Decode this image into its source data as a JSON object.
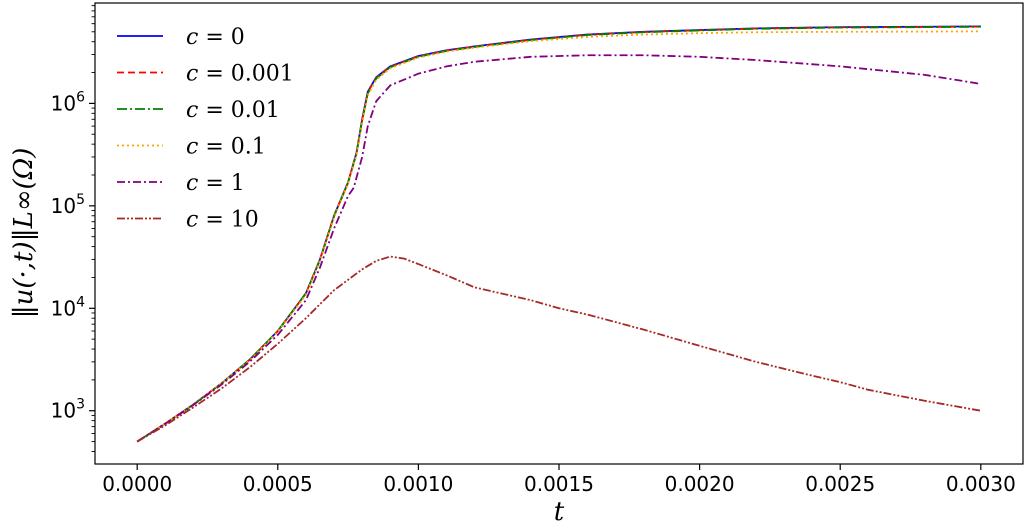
{
  "chart_data": {
    "type": "line",
    "title": "",
    "xlabel": "t",
    "ylabel": "‖u(·,t)‖L∞(Ω)",
    "xlim": [
      -0.00015,
      0.00315
    ],
    "ylim_log10": [
      2.48,
      6.98
    ],
    "y_scale": "log",
    "grid": false,
    "legend_position": "top-left",
    "x_ticks": [
      0.0,
      0.0005,
      0.001,
      0.0015,
      0.002,
      0.0025,
      0.003
    ],
    "x_tick_labels": [
      "0.0000",
      "0.0005",
      "0.0010",
      "0.0015",
      "0.0020",
      "0.0025",
      "0.0030"
    ],
    "y_ticks": [
      1000,
      10000,
      100000,
      1000000
    ],
    "y_tick_labels": [
      {
        "base": "10",
        "exp": "3"
      },
      {
        "base": "10",
        "exp": "4"
      },
      {
        "base": "10",
        "exp": "5"
      },
      {
        "base": "10",
        "exp": "6"
      }
    ],
    "series": [
      {
        "name": "c = 0",
        "legend_var": "c",
        "legend_value": "0",
        "color": "#0000ff",
        "dash": "",
        "x": [
          0,
          0.0001,
          0.0002,
          0.0003,
          0.0004,
          0.0005,
          0.0006,
          0.00065,
          0.0007,
          0.00075,
          0.00078,
          0.0008,
          0.00082,
          0.00085,
          0.0009,
          0.001,
          0.0011,
          0.0012,
          0.0014,
          0.0016,
          0.0018,
          0.002,
          0.0022,
          0.0025,
          0.0028,
          0.003
        ],
        "y": [
          500,
          750,
          1150,
          1850,
          3150,
          6000,
          14000,
          30000,
          80000,
          170000,
          330000,
          700000,
          1300000,
          1800000,
          2300000,
          2900000,
          3300000,
          3600000,
          4200000,
          4700000,
          5000000,
          5200000,
          5400000,
          5550000,
          5600000,
          5650000
        ]
      },
      {
        "name": "c = 0.001",
        "legend_var": "c",
        "legend_value": "0.001",
        "color": "#ff0000",
        "dash": "7,4",
        "x": [
          0,
          0.0001,
          0.0002,
          0.0003,
          0.0004,
          0.0005,
          0.0006,
          0.00065,
          0.0007,
          0.00075,
          0.00078,
          0.0008,
          0.00082,
          0.00085,
          0.0009,
          0.001,
          0.0011,
          0.0012,
          0.0014,
          0.0016,
          0.0018,
          0.002,
          0.0022,
          0.0025,
          0.0028,
          0.003
        ],
        "y": [
          500,
          750,
          1150,
          1850,
          3150,
          6000,
          14000,
          30000,
          80000,
          170000,
          330000,
          690000,
          1280000,
          1780000,
          2280000,
          2880000,
          3280000,
          3580000,
          4180000,
          4680000,
          4980000,
          5180000,
          5380000,
          5530000,
          5580000,
          5620000
        ]
      },
      {
        "name": "c = 0.01",
        "legend_var": "c",
        "legend_value": "0.01",
        "color": "#008000",
        "dash": "10,3,2,3",
        "x": [
          0,
          0.0001,
          0.0002,
          0.0003,
          0.0004,
          0.0005,
          0.0006,
          0.00065,
          0.0007,
          0.00075,
          0.00078,
          0.0008,
          0.00082,
          0.00085,
          0.0009,
          0.001,
          0.0011,
          0.0012,
          0.0014,
          0.0016,
          0.0018,
          0.002,
          0.0022,
          0.0025,
          0.0028,
          0.003
        ],
        "y": [
          500,
          750,
          1150,
          1850,
          3150,
          6000,
          14000,
          29500,
          79000,
          168000,
          325000,
          680000,
          1250000,
          1750000,
          2250000,
          2850000,
          3250000,
          3550000,
          4150000,
          4650000,
          4950000,
          5150000,
          5350000,
          5500000,
          5550000,
          5600000
        ]
      },
      {
        "name": "c = 0.1",
        "legend_var": "c",
        "legend_value": "0.1",
        "color": "#ffa500",
        "dash": "2,3",
        "x": [
          0,
          0.0001,
          0.0002,
          0.0003,
          0.0004,
          0.0005,
          0.0006,
          0.00065,
          0.0007,
          0.00075,
          0.00078,
          0.0008,
          0.00082,
          0.00085,
          0.0009,
          0.001,
          0.0011,
          0.0012,
          0.0014,
          0.0016,
          0.0018,
          0.002,
          0.0022,
          0.0025,
          0.0028,
          0.003
        ],
        "y": [
          500,
          750,
          1150,
          1850,
          3100,
          5900,
          13500,
          29000,
          77000,
          165000,
          315000,
          650000,
          1200000,
          1700000,
          2200000,
          2800000,
          3200000,
          3500000,
          4050000,
          4450000,
          4700000,
          4850000,
          4950000,
          5000000,
          5020000,
          5050000
        ]
      },
      {
        "name": "c = 1",
        "legend_var": "c",
        "legend_value": "1",
        "color": "#800080",
        "dash": "8,3,2,3",
        "x": [
          0,
          0.0001,
          0.0002,
          0.0003,
          0.0004,
          0.0005,
          0.0006,
          0.00065,
          0.0007,
          0.00075,
          0.00077,
          0.0008,
          0.00082,
          0.00085,
          0.0009,
          0.001,
          0.0011,
          0.0012,
          0.0014,
          0.0016,
          0.0018,
          0.002,
          0.0022,
          0.0025,
          0.0028,
          0.003
        ],
        "y": [
          500,
          745,
          1140,
          1800,
          3000,
          5500,
          12000,
          25000,
          60000,
          125000,
          150000,
          300000,
          600000,
          1050000,
          1500000,
          1950000,
          2300000,
          2550000,
          2850000,
          2950000,
          2950000,
          2850000,
          2650000,
          2300000,
          1900000,
          1550000
        ]
      },
      {
        "name": "c = 10",
        "legend_var": "c",
        "legend_value": "10",
        "color": "#a52a2a",
        "dash": "8,2,2,2,2,2",
        "x": [
          0,
          0.0001,
          0.0002,
          0.0003,
          0.0004,
          0.0005,
          0.0006,
          0.0007,
          0.0008,
          0.00085,
          0.0009,
          0.00095,
          0.001,
          0.0011,
          0.0012,
          0.0014,
          0.0015,
          0.0016,
          0.0018,
          0.002,
          0.0022,
          0.0024,
          0.0025,
          0.0026,
          0.0028,
          0.003
        ],
        "y": [
          500,
          720,
          1080,
          1650,
          2650,
          4500,
          8000,
          15000,
          24000,
          29000,
          32000,
          30500,
          27000,
          21000,
          16000,
          12000,
          10000,
          8700,
          6200,
          4300,
          3000,
          2200,
          1900,
          1600,
          1250,
          1000
        ]
      }
    ]
  }
}
